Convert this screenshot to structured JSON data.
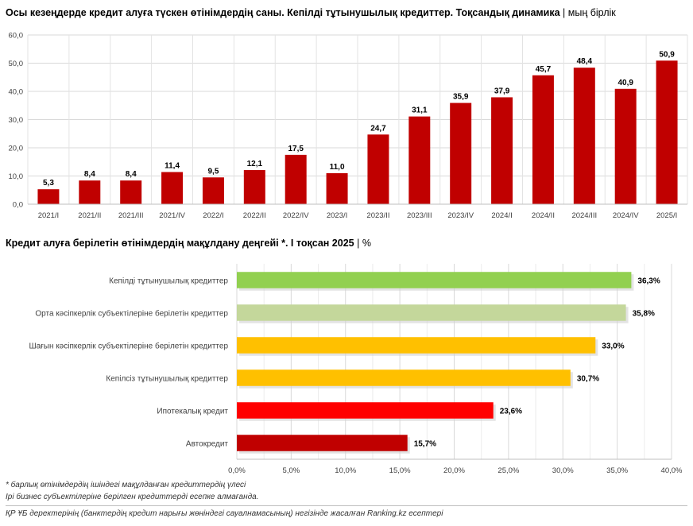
{
  "chart_data": [
    {
      "type": "bar",
      "title": "Осы кезеңдерде кредит алуға түскен өтінімдердің саны. Кепілді тұтынушылық кредиттер. Тоқсандық  динамика",
      "unit": "мың бірлік",
      "categories": [
        "2021/I",
        "2021/II",
        "2021/III",
        "2021/IV",
        "2022/I",
        "2022/II",
        "2022/IV",
        "2023/I",
        "2023/II",
        "2023/III",
        "2023/IV",
        "2024/I",
        "2024/II",
        "2024/III",
        "2024/IV",
        "2025/I"
      ],
      "values": [
        5.3,
        8.4,
        8.4,
        11.4,
        9.5,
        12.1,
        17.5,
        11.0,
        24.7,
        31.1,
        35.9,
        37.9,
        45.7,
        48.4,
        40.9,
        50.9
      ],
      "value_labels": [
        "5,3",
        "8,4",
        "8,4",
        "11,4",
        "9,5",
        "12,1",
        "17,5",
        "11,0",
        "24,7",
        "31,1",
        "35,9",
        "37,9",
        "45,7",
        "48,4",
        "40,9",
        "50,9"
      ],
      "y_ticks": [
        "0,0",
        "10,0",
        "20,0",
        "30,0",
        "40,0",
        "50,0",
        "60,0"
      ],
      "ylim": [
        0,
        60
      ],
      "bar_color": "#C00000",
      "grid": true,
      "xlabel": "",
      "ylabel": ""
    },
    {
      "type": "bar",
      "orientation": "horizontal",
      "title": "Кредит алуға берілетін өтінімдердің мақұлдану деңгейі *. I тоқсан 2025",
      "unit": "%",
      "categories": [
        "Кепілді тұтынушылық кредиттер",
        "Орта кәсіпкерлік субъектілеріне берілетін кредиттер",
        "Шағын кәсіпкерлік субъектілеріне берілетін кредиттер",
        "Кепілсіз тұтынушылық кредиттер",
        "Ипотекалық кредит",
        "Автокредит"
      ],
      "values": [
        36.3,
        35.8,
        33.0,
        30.7,
        23.6,
        15.7
      ],
      "value_labels": [
        "36,3%",
        "35,8%",
        "33,0%",
        "30,7%",
        "23,6%",
        "15,7%"
      ],
      "colors": [
        "#92D050",
        "#C4D79B",
        "#FFC000",
        "#FFC000",
        "#FF0000",
        "#C00000"
      ],
      "x_ticks": [
        "0,0%",
        "5,0%",
        "10,0%",
        "15,0%",
        "20,0%",
        "25,0%",
        "30,0%",
        "35,0%",
        "40,0%"
      ],
      "xlim": [
        0,
        40
      ],
      "grid": true
    }
  ],
  "footnotes": {
    "note1": "* барлық өтінімдердің ішіндегі мақұлданған кредиттердің үлесі",
    "note2": "Ірі бизнес субъектілеріне берілген кредиттерді есепке алмағанда.",
    "source": "ҚР ҰБ деректерінің (банктердің кредит нарығы жөніндегі сауалнамасының) негізінде жасалған Ranking.kz есептері"
  }
}
